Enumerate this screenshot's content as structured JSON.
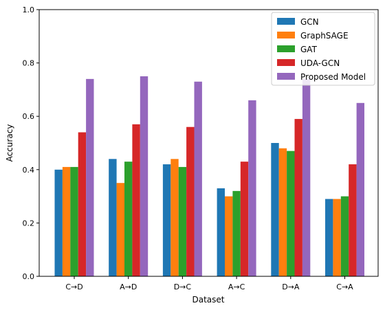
{
  "chart_data": {
    "type": "bar",
    "categories": [
      "C→D",
      "A→D",
      "D→C",
      "A→C",
      "D→A",
      "C→A"
    ],
    "series": [
      {
        "name": "GCN",
        "color": "#1f77b4",
        "values": [
          0.4,
          0.44,
          0.42,
          0.33,
          0.5,
          0.29
        ]
      },
      {
        "name": "GraphSAGE",
        "color": "#ff7f0e",
        "values": [
          0.41,
          0.35,
          0.44,
          0.3,
          0.48,
          0.29
        ]
      },
      {
        "name": "GAT",
        "color": "#2ca02c",
        "values": [
          0.41,
          0.43,
          0.41,
          0.32,
          0.47,
          0.3
        ]
      },
      {
        "name": "UDA-GCN",
        "color": "#d62728",
        "values": [
          0.54,
          0.57,
          0.56,
          0.43,
          0.59,
          0.42
        ]
      },
      {
        "name": "Proposed Model",
        "color": "#9467bd",
        "values": [
          0.74,
          0.75,
          0.73,
          0.66,
          0.74,
          0.65
        ]
      }
    ],
    "xlabel": "Dataset",
    "ylabel": "Accuracy",
    "ylim": [
      0,
      1.0
    ],
    "yticks": [
      "0.0",
      "0.2",
      "0.4",
      "0.6",
      "0.8",
      "1.0"
    ],
    "grid": false,
    "legend_position": "top-right"
  }
}
